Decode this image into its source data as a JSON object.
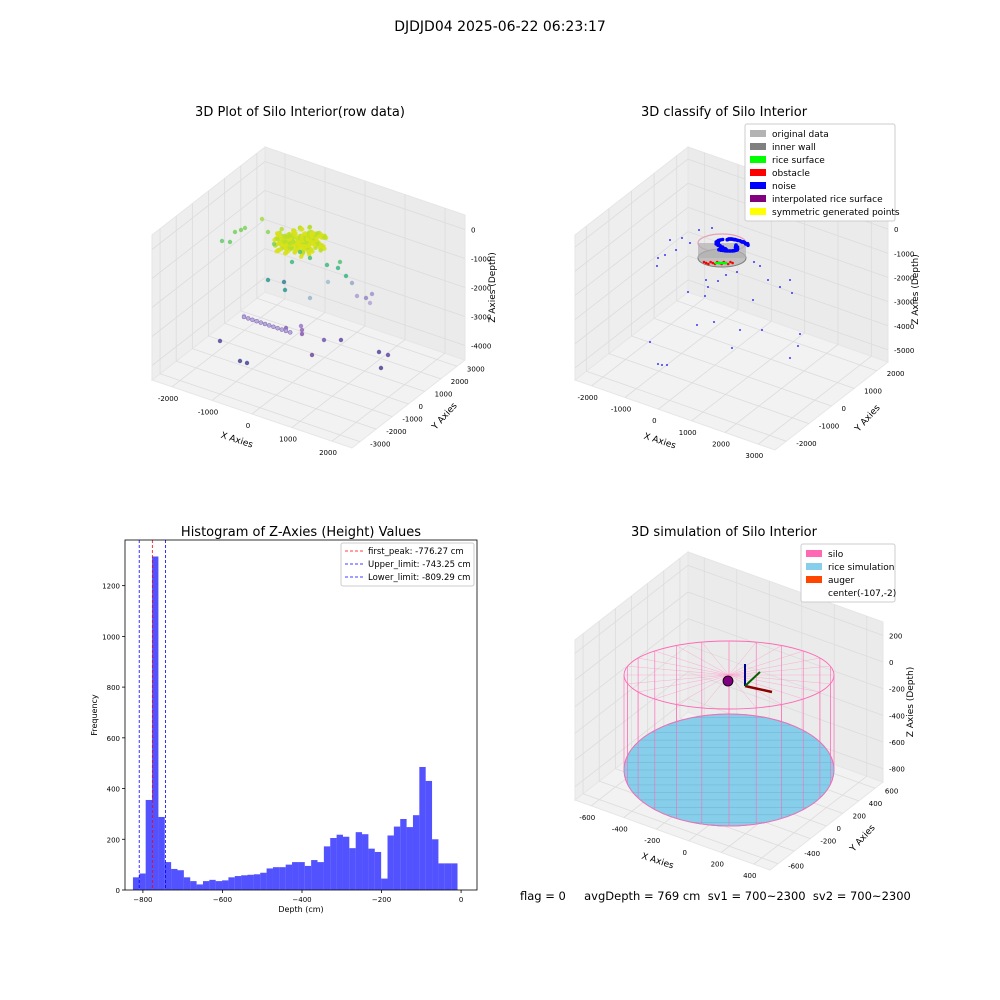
{
  "suptitle": "DJDJD04 2025-06-22 06:23:17",
  "footer": "flag = 0     avgDepth = 769 cm  sv1 = 700~2300  sv2 = 700~2300",
  "chart_data": [
    {
      "type": "scatter3d",
      "title": "3D Plot of Silo Interior(row data)",
      "xlabel": "X Axies",
      "ylabel": "Y Axies",
      "zlabel": "Z Axies (Depth)",
      "x_ticks": [
        "-2000",
        "-1000",
        "0",
        "1000",
        "2000"
      ],
      "y_ticks": [
        "-3000",
        "-2000",
        "-1000",
        "0",
        "1000",
        "2000",
        "3000"
      ],
      "z_ticks": [
        "0",
        "-1000",
        "-2000",
        "-3000",
        "-4000"
      ],
      "colormap": "viridis"
    },
    {
      "type": "scatter3d",
      "title": "3D classify of Silo Interior",
      "xlabel": "X Axies",
      "ylabel": "Y Axies",
      "zlabel": "Z Axies (Depth)",
      "x_ticks": [
        "-2000",
        "-1000",
        "0",
        "1000",
        "2000",
        "3000"
      ],
      "y_ticks": [
        "-2000",
        "-1000",
        "0",
        "1000",
        "2000"
      ],
      "z_ticks": [
        "0",
        "-1000",
        "-2000",
        "-3000",
        "-4000",
        "-5000"
      ],
      "legend": [
        {
          "label": "original data",
          "color": "#b3b3b3"
        },
        {
          "label": "inner wall",
          "color": "#808080"
        },
        {
          "label": "rice surface",
          "color": "#00ff00"
        },
        {
          "label": "obstacle",
          "color": "#ff0000"
        },
        {
          "label": "noise",
          "color": "#0000ff"
        },
        {
          "label": "interpolated rice surface",
          "color": "#800080"
        },
        {
          "label": "symmetric generated points",
          "color": "#ffff00"
        }
      ],
      "legend_loc": "upper right"
    },
    {
      "type": "histogram",
      "title": "Histogram of Z-Axies (Height) Values",
      "xlabel": "Depth (cm)",
      "ylabel": "Frequency",
      "xlim": [
        -845,
        40
      ],
      "ylim": [
        0,
        1380
      ],
      "x_ticks": [
        "-800",
        "-600",
        "-400",
        "-200",
        "0"
      ],
      "y_ticks": [
        "0",
        "200",
        "400",
        "600",
        "800",
        "1000",
        "1200"
      ],
      "bar_color": "#0000ff",
      "bin_width": 16,
      "bin_starts": [
        -825,
        -809,
        -793,
        -777,
        -761,
        -745,
        -729,
        -713,
        -697,
        -681,
        -665,
        -649,
        -633,
        -617,
        -601,
        -585,
        -569,
        -553,
        -537,
        -521,
        -505,
        -489,
        -473,
        -457,
        -441,
        -425,
        -409,
        -393,
        -377,
        -361,
        -345,
        -329,
        -313,
        -297,
        -281,
        -265,
        -249,
        -233,
        -217,
        -201,
        -185,
        -169,
        -153,
        -137,
        -121,
        -105,
        -89,
        -73,
        -57,
        -41,
        -25
      ],
      "counts": [
        50,
        65,
        355,
        1315,
        288,
        110,
        83,
        78,
        50,
        35,
        22,
        35,
        40,
        35,
        38,
        50,
        55,
        58,
        60,
        62,
        68,
        85,
        90,
        90,
        100,
        110,
        110,
        95,
        118,
        110,
        172,
        205,
        218,
        210,
        165,
        228,
        220,
        163,
        150,
        45,
        215,
        250,
        280,
        248,
        295,
        485,
        430,
        200,
        105,
        105,
        105
      ],
      "vlines": [
        {
          "label": "first_peak: -776.27 cm",
          "x": -776.27,
          "color": "#ff0000"
        },
        {
          "label": "Upper_limit: -743.25 cm",
          "x": -743.25,
          "color": "#0000ff"
        },
        {
          "label": "Lower_limit: -809.29 cm",
          "x": -809.29,
          "color": "#0000ff"
        }
      ],
      "legend_loc": "upper right"
    },
    {
      "type": "surface3d",
      "title": "3D simulation of Silo Interior",
      "xlabel": "X Axies",
      "ylabel": "Y Axies",
      "zlabel": "Z Axies (Depth)",
      "x_ticks": [
        "-600",
        "-400",
        "-200",
        "0",
        "200",
        "400"
      ],
      "y_ticks": [
        "-600",
        "-400",
        "-200",
        "0",
        "200",
        "400",
        "600"
      ],
      "z_ticks": [
        "200",
        "0",
        "-200",
        "-400",
        "-600",
        "-800"
      ],
      "legend": [
        {
          "label": "silo",
          "color": "#ff69b4"
        },
        {
          "label": "rice simulation",
          "color": "#87ceeb"
        },
        {
          "label": "auger",
          "color": "#ff4500"
        },
        {
          "label": "center(-107,-2)",
          "color": ""
        }
      ],
      "legend_loc": "upper right"
    }
  ]
}
